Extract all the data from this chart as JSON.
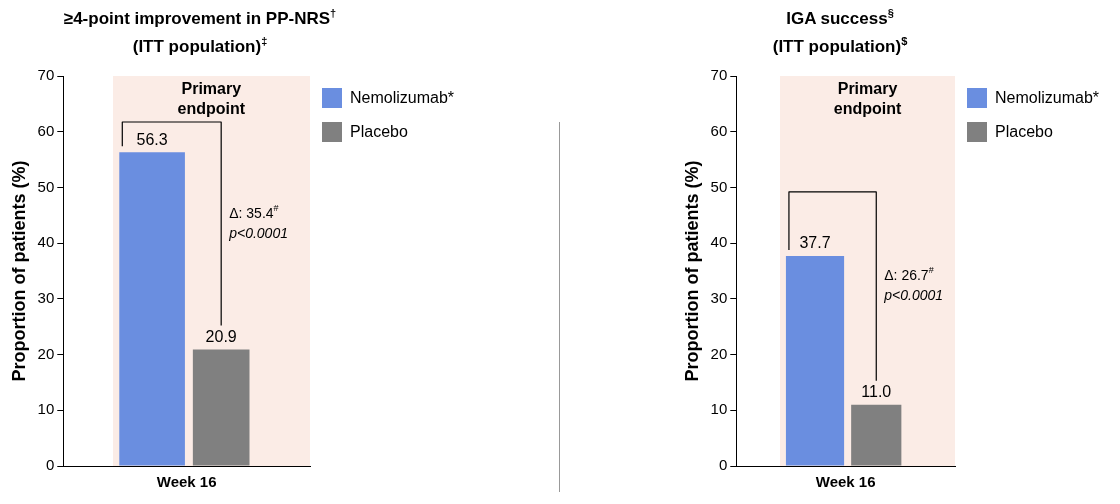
{
  "chart_data": [
    {
      "type": "bar",
      "title": "≥4-point improvement in PP-NRS$^{†}$\n(ITT population)$^{‡}$",
      "ylabel": "Proportion of patients (%)",
      "categories": [
        "Week 16"
      ],
      "series": [
        {
          "name": "Nemolizumab*",
          "color": "#6a8ee0",
          "values": [
            56.3
          ],
          "value_labels": [
            "56.3"
          ]
        },
        {
          "name": "Placebo",
          "color": "#808080",
          "values": [
            20.9
          ],
          "value_labels": [
            "20.9"
          ]
        }
      ],
      "ylim": [
        0,
        70
      ],
      "yticks": [
        0,
        10,
        20,
        30,
        40,
        50,
        60,
        70
      ],
      "grid": false,
      "legend": "top right",
      "annotations": [
        "Primary endpoint",
        "Δ: 35.4$^{#}$",
        "p<0.0001"
      ]
    },
    {
      "type": "bar",
      "title": "IGA success$^{§}$\n(ITT population)$^{$}$",
      "ylabel": "Proportion of patients (%)",
      "categories": [
        "Week 16"
      ],
      "series": [
        {
          "name": "Nemolizumab*",
          "color": "#6a8ee0",
          "values": [
            37.7
          ],
          "value_labels": [
            "37.7"
          ]
        },
        {
          "name": "Placebo",
          "color": "#808080",
          "values": [
            11.0
          ],
          "value_labels": [
            "11.0"
          ]
        }
      ],
      "ylim": [
        0,
        70
      ],
      "yticks": [
        0,
        10,
        20,
        30,
        40,
        50,
        60,
        70
      ],
      "grid": false,
      "legend": "top right",
      "annotations": [
        "Primary endpoint",
        "Δ: 26.7$^{#}$",
        "p<0.0001"
      ]
    }
  ]
}
